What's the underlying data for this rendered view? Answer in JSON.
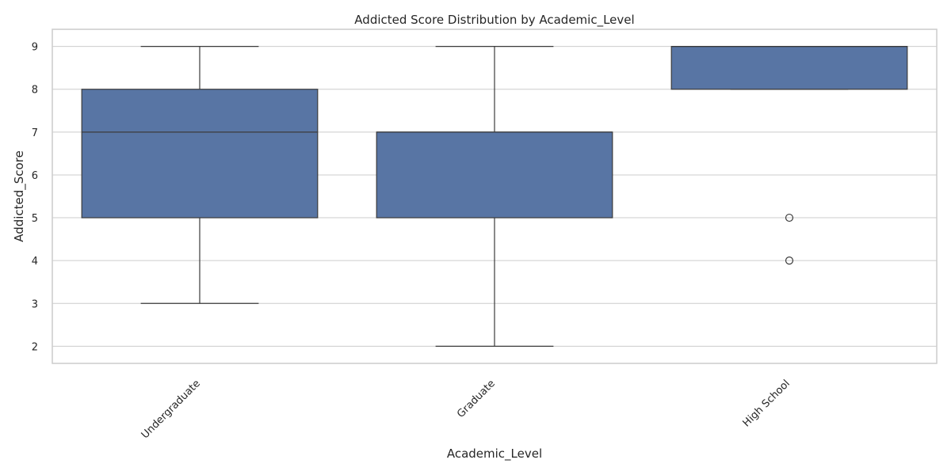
{
  "chart_data": {
    "type": "box",
    "title": "Addicted Score Distribution by Academic_Level",
    "xlabel": "Academic_Level",
    "ylabel": "Addicted_Score",
    "ylim": [
      1.6,
      9.4
    ],
    "yticks": [
      2,
      3,
      4,
      5,
      6,
      7,
      8,
      9
    ],
    "grid": true,
    "box_color": "#5875a4",
    "edge_color": "#3b3b3b",
    "categories": [
      "Undergraduate",
      "Graduate",
      "High School"
    ],
    "boxes": [
      {
        "category": "Undergraduate",
        "whisker_low": 3,
        "q1": 5,
        "median": 7,
        "q3": 8,
        "whisker_high": 9,
        "outliers": []
      },
      {
        "category": "Graduate",
        "whisker_low": 2,
        "q1": 5,
        "median": 7,
        "q3": 7,
        "whisker_high": 9,
        "outliers": []
      },
      {
        "category": "High School",
        "whisker_low": 8,
        "q1": 8,
        "median": 9,
        "q3": 9,
        "whisker_high": 9,
        "outliers": [
          5,
          4
        ]
      }
    ]
  }
}
